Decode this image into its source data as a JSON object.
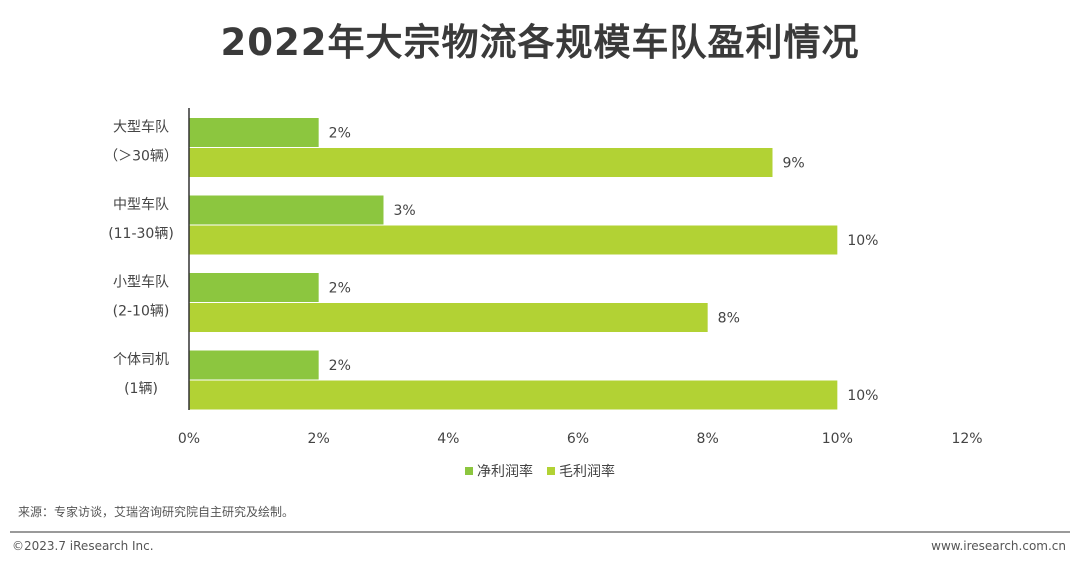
{
  "chart_data": {
    "type": "bar",
    "orientation": "horizontal",
    "title": "2022年大宗物流各规模车队盈利情况",
    "categories": [
      [
        "大型车队",
        "（＞30辆）"
      ],
      [
        "中型车队",
        "(11-30辆)"
      ],
      [
        "小型车队",
        "(2-10辆)"
      ],
      [
        "个体司机",
        "(1辆)"
      ]
    ],
    "series": [
      {
        "name": "净利润率",
        "values": [
          2,
          3,
          2,
          2
        ],
        "labels": [
          "2%",
          "3%",
          "2%",
          "2%"
        ],
        "color": "#8cc63f"
      },
      {
        "name": "毛利润率",
        "values": [
          9,
          10,
          8,
          10
        ],
        "labels": [
          "9%",
          "10%",
          "8%",
          "10%"
        ],
        "color": "#b2d234"
      }
    ],
    "xlim": [
      0,
      12
    ],
    "xticks": [
      "0%",
      "2%",
      "4%",
      "6%",
      "8%",
      "10%",
      "12%"
    ],
    "grid": false,
    "legend_position": "bottom"
  },
  "source": "来源：专家访谈，艾瑞咨询研究院自主研究及绘制。",
  "copyright": "©2023.7 iResearch Inc.",
  "website": "www.iresearch.com.cn"
}
